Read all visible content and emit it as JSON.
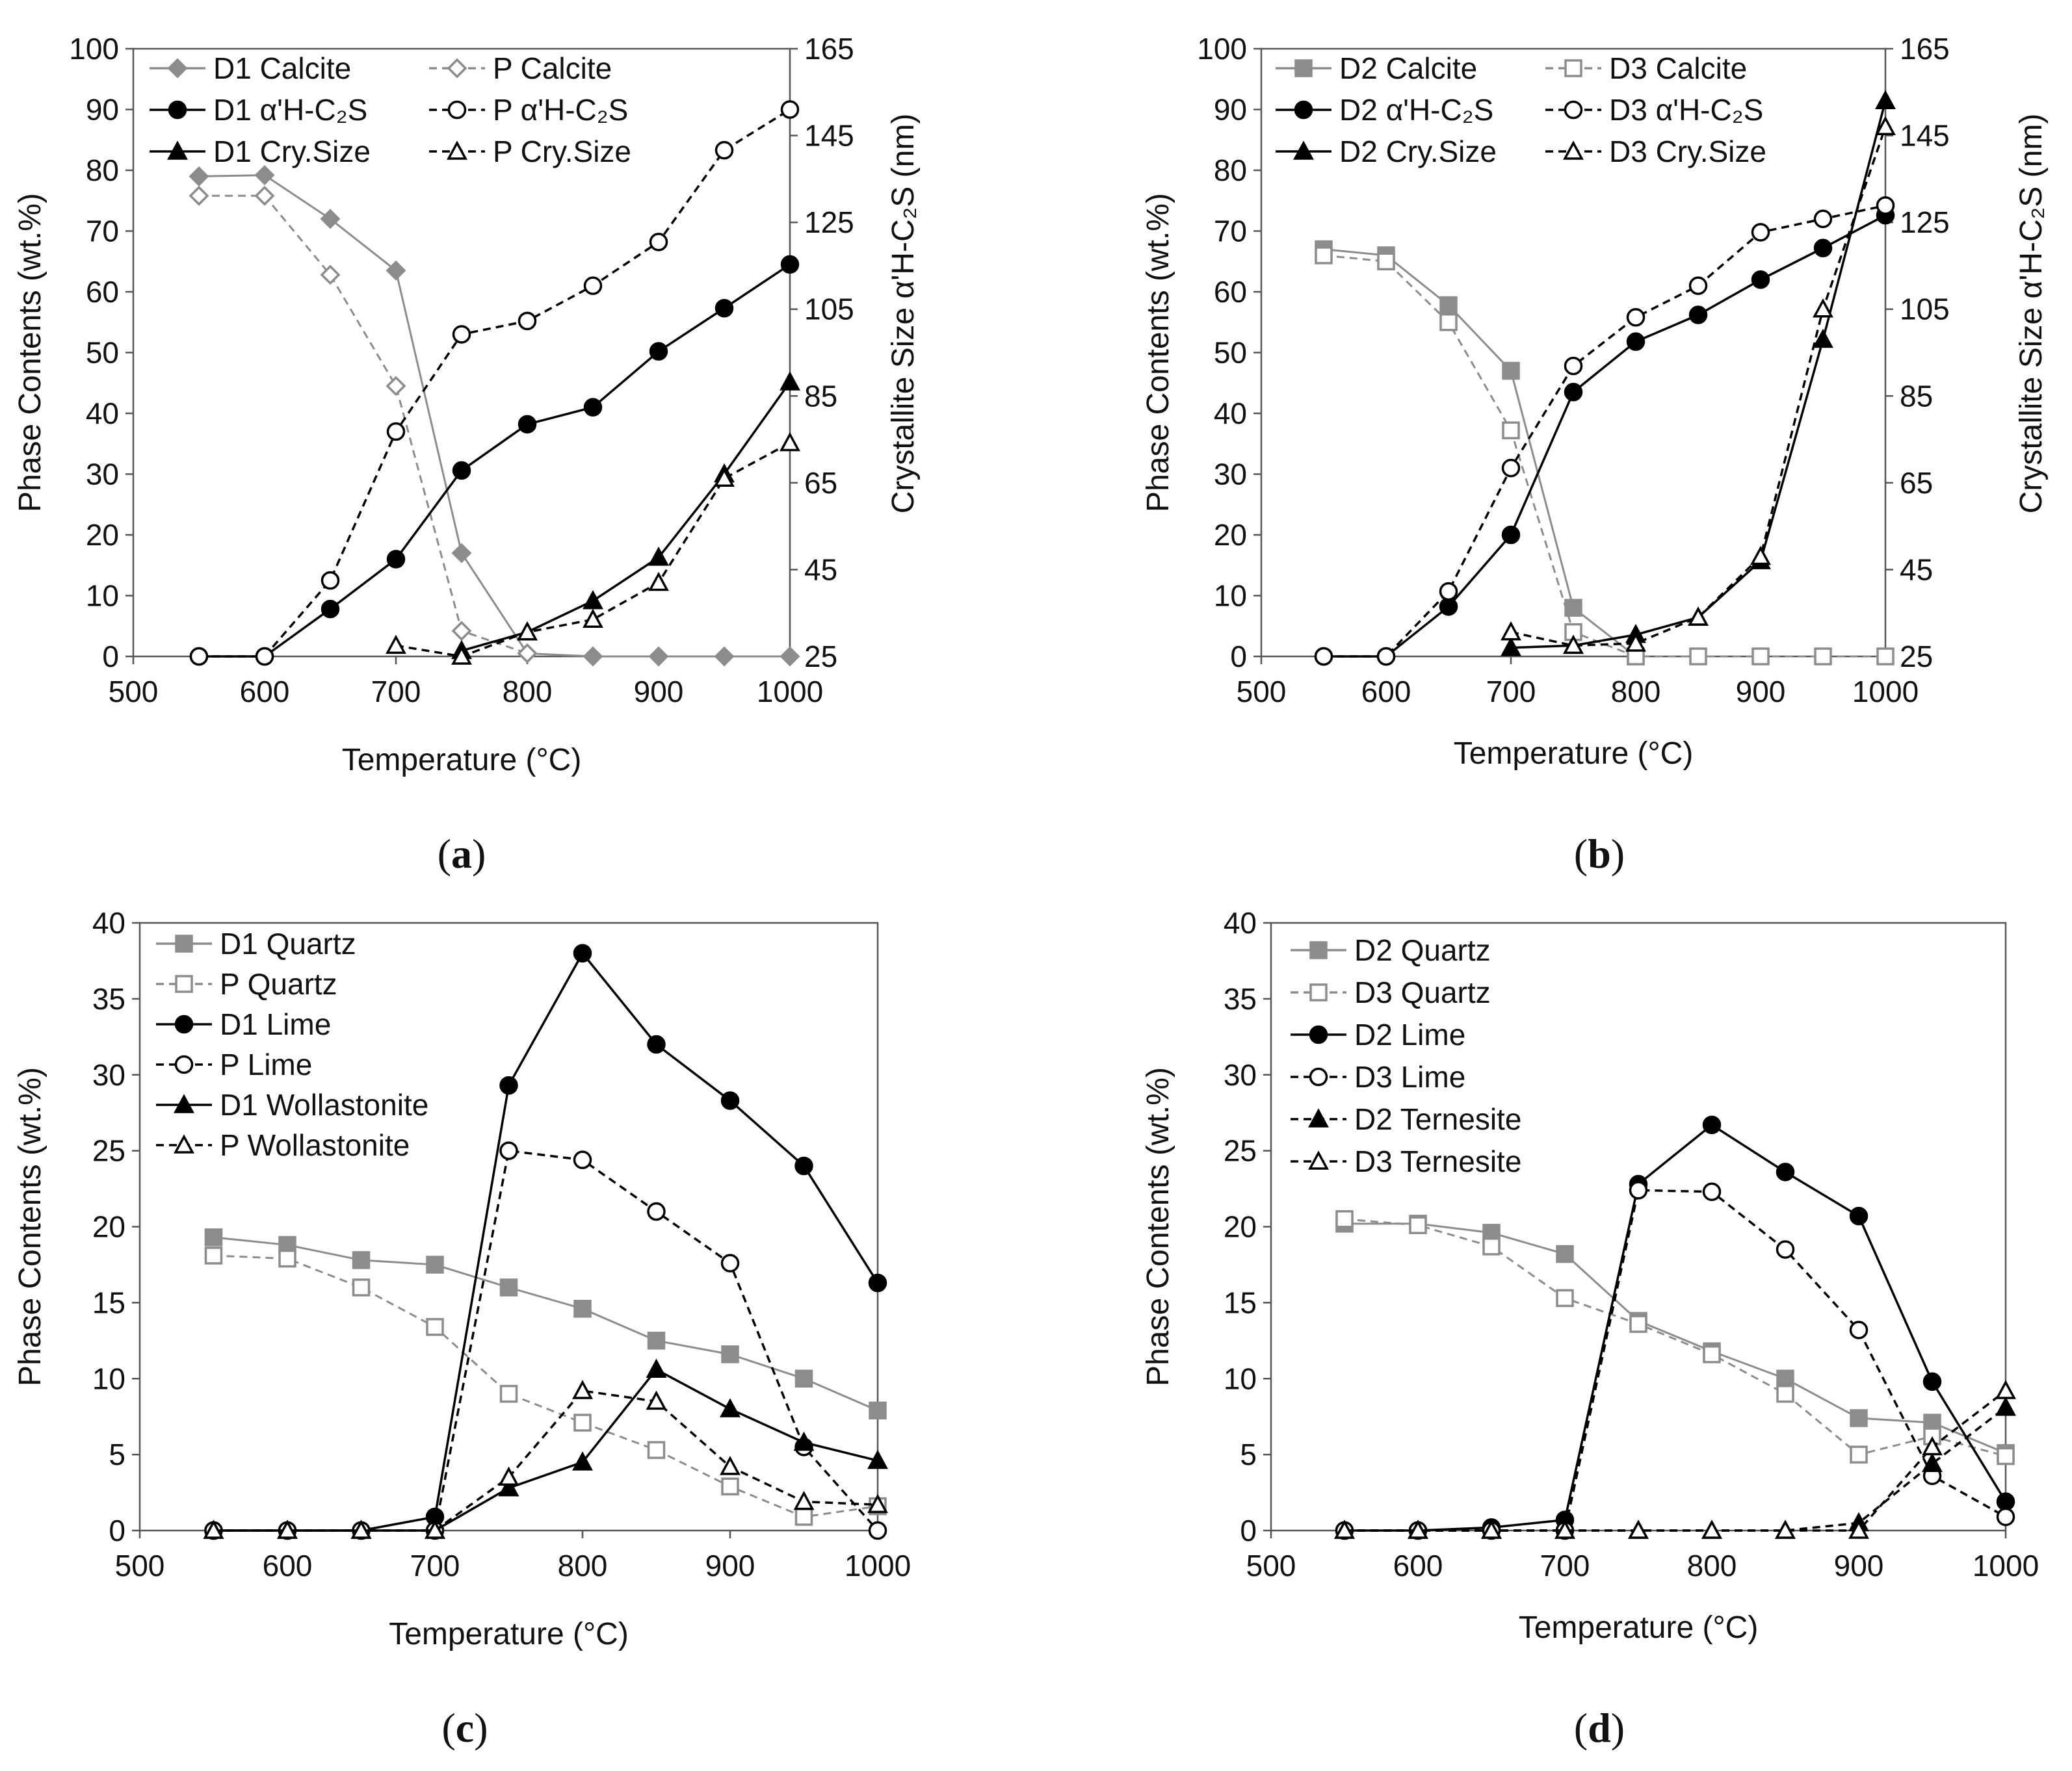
{
  "colors": {
    "black": "#000000",
    "gray": "#8c8c8c"
  },
  "chart_data": [
    {
      "panel": "a",
      "type": "line",
      "xlabel": "Temperature (°C)",
      "ylabel": "Phase Contents (wt.%)",
      "y2label": "Crystallite Size α'H-C₂S (nm)",
      "xlim": [
        500,
        1000
      ],
      "ylim": [
        0,
        100
      ],
      "y2lim": [
        25,
        165
      ],
      "xticks": [
        500,
        600,
        700,
        800,
        900,
        1000
      ],
      "yticks": [
        0,
        10,
        20,
        30,
        40,
        50,
        60,
        70,
        80,
        90,
        100
      ],
      "y2ticks": [
        25,
        45,
        65,
        85,
        105,
        125,
        145,
        165
      ],
      "legend_columns": 2,
      "series": [
        {
          "name": "D1 Calcite",
          "axis": "left",
          "color": "gray",
          "dashed": false,
          "marker": "diamond",
          "filled": true,
          "x": [
            550,
            600,
            650,
            700,
            750,
            800,
            850,
            900,
            950,
            1000
          ],
          "values": [
            79,
            79.2,
            72,
            63.5,
            17,
            0.5,
            0,
            0,
            0,
            0
          ]
        },
        {
          "name": "P Calcite",
          "axis": "left",
          "color": "gray",
          "dashed": true,
          "marker": "diamond",
          "filled": false,
          "x": [
            550,
            600,
            650,
            700,
            750,
            800
          ],
          "values": [
            75.8,
            75.8,
            62.8,
            44.5,
            4.2,
            0.5
          ]
        },
        {
          "name": "D1 α'H-C₂S",
          "axis": "left",
          "color": "black",
          "dashed": false,
          "marker": "circle",
          "filled": true,
          "x": [
            550,
            600,
            650,
            700,
            750,
            800,
            850,
            900,
            950,
            1000
          ],
          "values": [
            0,
            0,
            7.8,
            16,
            30.6,
            38.2,
            41,
            50.2,
            57.3,
            64.5
          ]
        },
        {
          "name": "P α'H-C₂S",
          "axis": "left",
          "color": "black",
          "dashed": true,
          "marker": "circle",
          "filled": false,
          "x": [
            550,
            600,
            650,
            700,
            750,
            800,
            850,
            900,
            950,
            1000
          ],
          "values": [
            0,
            0,
            12.5,
            37,
            53,
            55.2,
            61,
            68.2,
            83.3,
            90
          ]
        },
        {
          "name": "D1 Cry.Size",
          "axis": "right",
          "color": "black",
          "dashed": false,
          "marker": "triangle",
          "filled": true,
          "x": [
            750,
            800,
            850,
            900,
            950,
            1000
          ],
          "values": [
            26.3,
            30.6,
            37.8,
            47.8,
            67,
            88.2
          ]
        },
        {
          "name": "P Cry.Size",
          "axis": "right",
          "color": "black",
          "dashed": true,
          "marker": "triangle",
          "filled": false,
          "x": [
            700,
            750,
            800,
            850,
            900,
            950,
            1000
          ],
          "values": [
            27.5,
            25,
            30.6,
            33.5,
            42,
            66,
            74.2
          ]
        }
      ]
    },
    {
      "panel": "b",
      "type": "line",
      "xlabel": "Temperature (°C)",
      "ylabel": "Phase Contents (wt.%)",
      "y2label": "Crystallite Size α'H-C₂S (nm)",
      "xlim": [
        500,
        1000
      ],
      "ylim": [
        0,
        100
      ],
      "y2lim": [
        25,
        165
      ],
      "xticks": [
        500,
        600,
        700,
        800,
        900,
        1000
      ],
      "yticks": [
        0,
        10,
        20,
        30,
        40,
        50,
        60,
        70,
        80,
        90,
        100
      ],
      "y2ticks": [
        25,
        45,
        65,
        85,
        105,
        125,
        145,
        165
      ],
      "legend_columns": 2,
      "series": [
        {
          "name": "D2 Calcite",
          "axis": "left",
          "color": "gray",
          "dashed": false,
          "marker": "square",
          "filled": true,
          "x": [
            550,
            600,
            650,
            700,
            750,
            800
          ],
          "values": [
            67,
            66,
            57.8,
            47,
            8,
            0
          ]
        },
        {
          "name": "D3 Calcite",
          "axis": "left",
          "color": "gray",
          "dashed": true,
          "marker": "square",
          "filled": false,
          "x": [
            550,
            600,
            650,
            700,
            750,
            800,
            850,
            900,
            950,
            1000
          ],
          "values": [
            66,
            65,
            55,
            37.2,
            4,
            0,
            0,
            0,
            0,
            0
          ]
        },
        {
          "name": "D2 α'H-C₂S",
          "axis": "left",
          "color": "black",
          "dashed": false,
          "marker": "circle",
          "filled": true,
          "x": [
            550,
            600,
            650,
            700,
            750,
            800,
            850,
            900,
            950,
            1000
          ],
          "values": [
            0,
            0,
            8.2,
            20,
            43.5,
            51.8,
            56.2,
            62,
            67.2,
            72.6
          ]
        },
        {
          "name": "D3 α'H-C₂S",
          "axis": "left",
          "color": "black",
          "dashed": true,
          "marker": "circle",
          "filled": false,
          "x": [
            550,
            600,
            650,
            700,
            750,
            800,
            850,
            900,
            950,
            1000
          ],
          "values": [
            0,
            0,
            10.7,
            31,
            47.8,
            55.8,
            61,
            69.8,
            72,
            74.2
          ]
        },
        {
          "name": "D2 Cry.Size",
          "axis": "right",
          "color": "black",
          "dashed": false,
          "marker": "triangle",
          "filled": true,
          "x": [
            700,
            750,
            800,
            850,
            900,
            950,
            1000
          ],
          "values": [
            27,
            27.5,
            30,
            34,
            47,
            98,
            153
          ]
        },
        {
          "name": "D3 Cry.Size",
          "axis": "right",
          "color": "black",
          "dashed": true,
          "marker": "triangle",
          "filled": false,
          "x": [
            700,
            750,
            800,
            850,
            900,
            950,
            1000
          ],
          "values": [
            30.6,
            27.5,
            28,
            34,
            48,
            105,
            147
          ]
        }
      ]
    },
    {
      "panel": "c",
      "type": "line",
      "xlabel": "Temperature (°C)",
      "ylabel": "Phase Contents (wt.%)",
      "y2label": "",
      "xlim": [
        500,
        1000
      ],
      "ylim": [
        0,
        40
      ],
      "xticks": [
        500,
        600,
        700,
        800,
        900,
        1000
      ],
      "yticks": [
        0,
        5,
        10,
        15,
        20,
        25,
        30,
        35,
        40
      ],
      "legend_columns": 1,
      "series": [
        {
          "name": "D1 Quartz",
          "axis": "left",
          "color": "gray",
          "dashed": false,
          "marker": "square",
          "filled": true,
          "x": [
            550,
            600,
            650,
            700,
            750,
            800,
            850,
            900,
            950,
            1000
          ],
          "values": [
            19.3,
            18.8,
            17.8,
            17.5,
            16,
            14.6,
            12.5,
            11.6,
            10,
            7.9
          ]
        },
        {
          "name": "P Quartz",
          "axis": "left",
          "color": "gray",
          "dashed": true,
          "marker": "square",
          "filled": false,
          "x": [
            550,
            600,
            650,
            700,
            750,
            800,
            850,
            900,
            950,
            1000
          ],
          "values": [
            18.1,
            17.9,
            16,
            13.4,
            9,
            7.1,
            5.3,
            2.9,
            0.9,
            1.6
          ]
        },
        {
          "name": "D1 Lime",
          "axis": "left",
          "color": "black",
          "dashed": false,
          "marker": "circle",
          "filled": true,
          "x": [
            550,
            600,
            650,
            700,
            750,
            800,
            850,
            900,
            950,
            1000
          ],
          "values": [
            0,
            0,
            0,
            0.9,
            29.3,
            38,
            32,
            28.3,
            24,
            16.3
          ]
        },
        {
          "name": "P Lime",
          "axis": "left",
          "color": "black",
          "dashed": true,
          "marker": "circle",
          "filled": false,
          "x": [
            550,
            600,
            650,
            700,
            750,
            800,
            850,
            900,
            950,
            1000
          ],
          "values": [
            0,
            0,
            0,
            0,
            25,
            24.4,
            21,
            17.6,
            5.5,
            0
          ]
        },
        {
          "name": "D1 Wollastonite",
          "axis": "left",
          "color": "black",
          "dashed": false,
          "marker": "triangle",
          "filled": true,
          "x": [
            550,
            600,
            650,
            700,
            750,
            800,
            850,
            900,
            950,
            1000
          ],
          "values": [
            0,
            0,
            0,
            0,
            2.8,
            4.5,
            10.6,
            8,
            5.8,
            4.6
          ]
        },
        {
          "name": "P Wollastonite",
          "axis": "left",
          "color": "black",
          "dashed": true,
          "marker": "triangle",
          "filled": false,
          "x": [
            550,
            600,
            650,
            700,
            750,
            800,
            850,
            900,
            950,
            1000
          ],
          "values": [
            0,
            0,
            0,
            0,
            3.5,
            9.2,
            8.5,
            4.2,
            1.9,
            1.7
          ]
        }
      ]
    },
    {
      "panel": "d",
      "type": "line",
      "xlabel": "Temperature (°C)",
      "ylabel": "Phase Contents (wt.%)",
      "y2label": "",
      "xlim": [
        500,
        1000
      ],
      "ylim": [
        0,
        40
      ],
      "xticks": [
        500,
        600,
        700,
        800,
        900,
        1000
      ],
      "yticks": [
        0,
        5,
        10,
        15,
        20,
        25,
        30,
        35,
        40
      ],
      "legend_columns": 1,
      "series": [
        {
          "name": "D2 Quartz",
          "axis": "left",
          "color": "gray",
          "dashed": false,
          "marker": "square",
          "filled": true,
          "x": [
            550,
            600,
            650,
            700,
            750,
            800,
            850,
            900,
            950,
            1000
          ],
          "values": [
            20.2,
            20.2,
            19.6,
            18.2,
            13.8,
            11.8,
            10,
            7.4,
            7.1,
            5.1
          ]
        },
        {
          "name": "D3 Quartz",
          "axis": "left",
          "color": "gray",
          "dashed": true,
          "marker": "square",
          "filled": false,
          "x": [
            550,
            600,
            650,
            700,
            750,
            800,
            850,
            900,
            950,
            1000
          ],
          "values": [
            20.5,
            20.1,
            18.7,
            15.3,
            13.6,
            11.6,
            9,
            5,
            6.2,
            4.9
          ]
        },
        {
          "name": "D2 Lime",
          "axis": "left",
          "color": "black",
          "dashed": false,
          "marker": "circle",
          "filled": true,
          "x": [
            550,
            600,
            650,
            700,
            750,
            800,
            850,
            900,
            950,
            1000
          ],
          "values": [
            0,
            0,
            0.2,
            0.7,
            22.8,
            26.7,
            23.6,
            20.7,
            9.8,
            1.9
          ]
        },
        {
          "name": "D3 Lime",
          "axis": "left",
          "color": "black",
          "dashed": true,
          "marker": "circle",
          "filled": false,
          "x": [
            550,
            600,
            650,
            700,
            750,
            800,
            850,
            900,
            950,
            1000
          ],
          "values": [
            0,
            0,
            0,
            0,
            22.4,
            22.3,
            18.5,
            13.2,
            3.6,
            0.9
          ]
        },
        {
          "name": "D2 Ternesite",
          "axis": "left",
          "color": "black",
          "dashed": true,
          "marker": "triangle",
          "filled": true,
          "x": [
            550,
            600,
            650,
            700,
            750,
            800,
            850,
            900,
            950,
            1000
          ],
          "values": [
            0,
            0,
            0,
            0,
            0,
            0,
            0,
            0.5,
            4.4,
            8.1
          ]
        },
        {
          "name": "D3 Ternesite",
          "axis": "left",
          "color": "black",
          "dashed": true,
          "marker": "triangle",
          "filled": false,
          "x": [
            550,
            600,
            650,
            700,
            750,
            800,
            850,
            900,
            950,
            1000
          ],
          "values": [
            0,
            0,
            0,
            0,
            0,
            0,
            0,
            0,
            5.5,
            9.2
          ]
        }
      ]
    }
  ]
}
